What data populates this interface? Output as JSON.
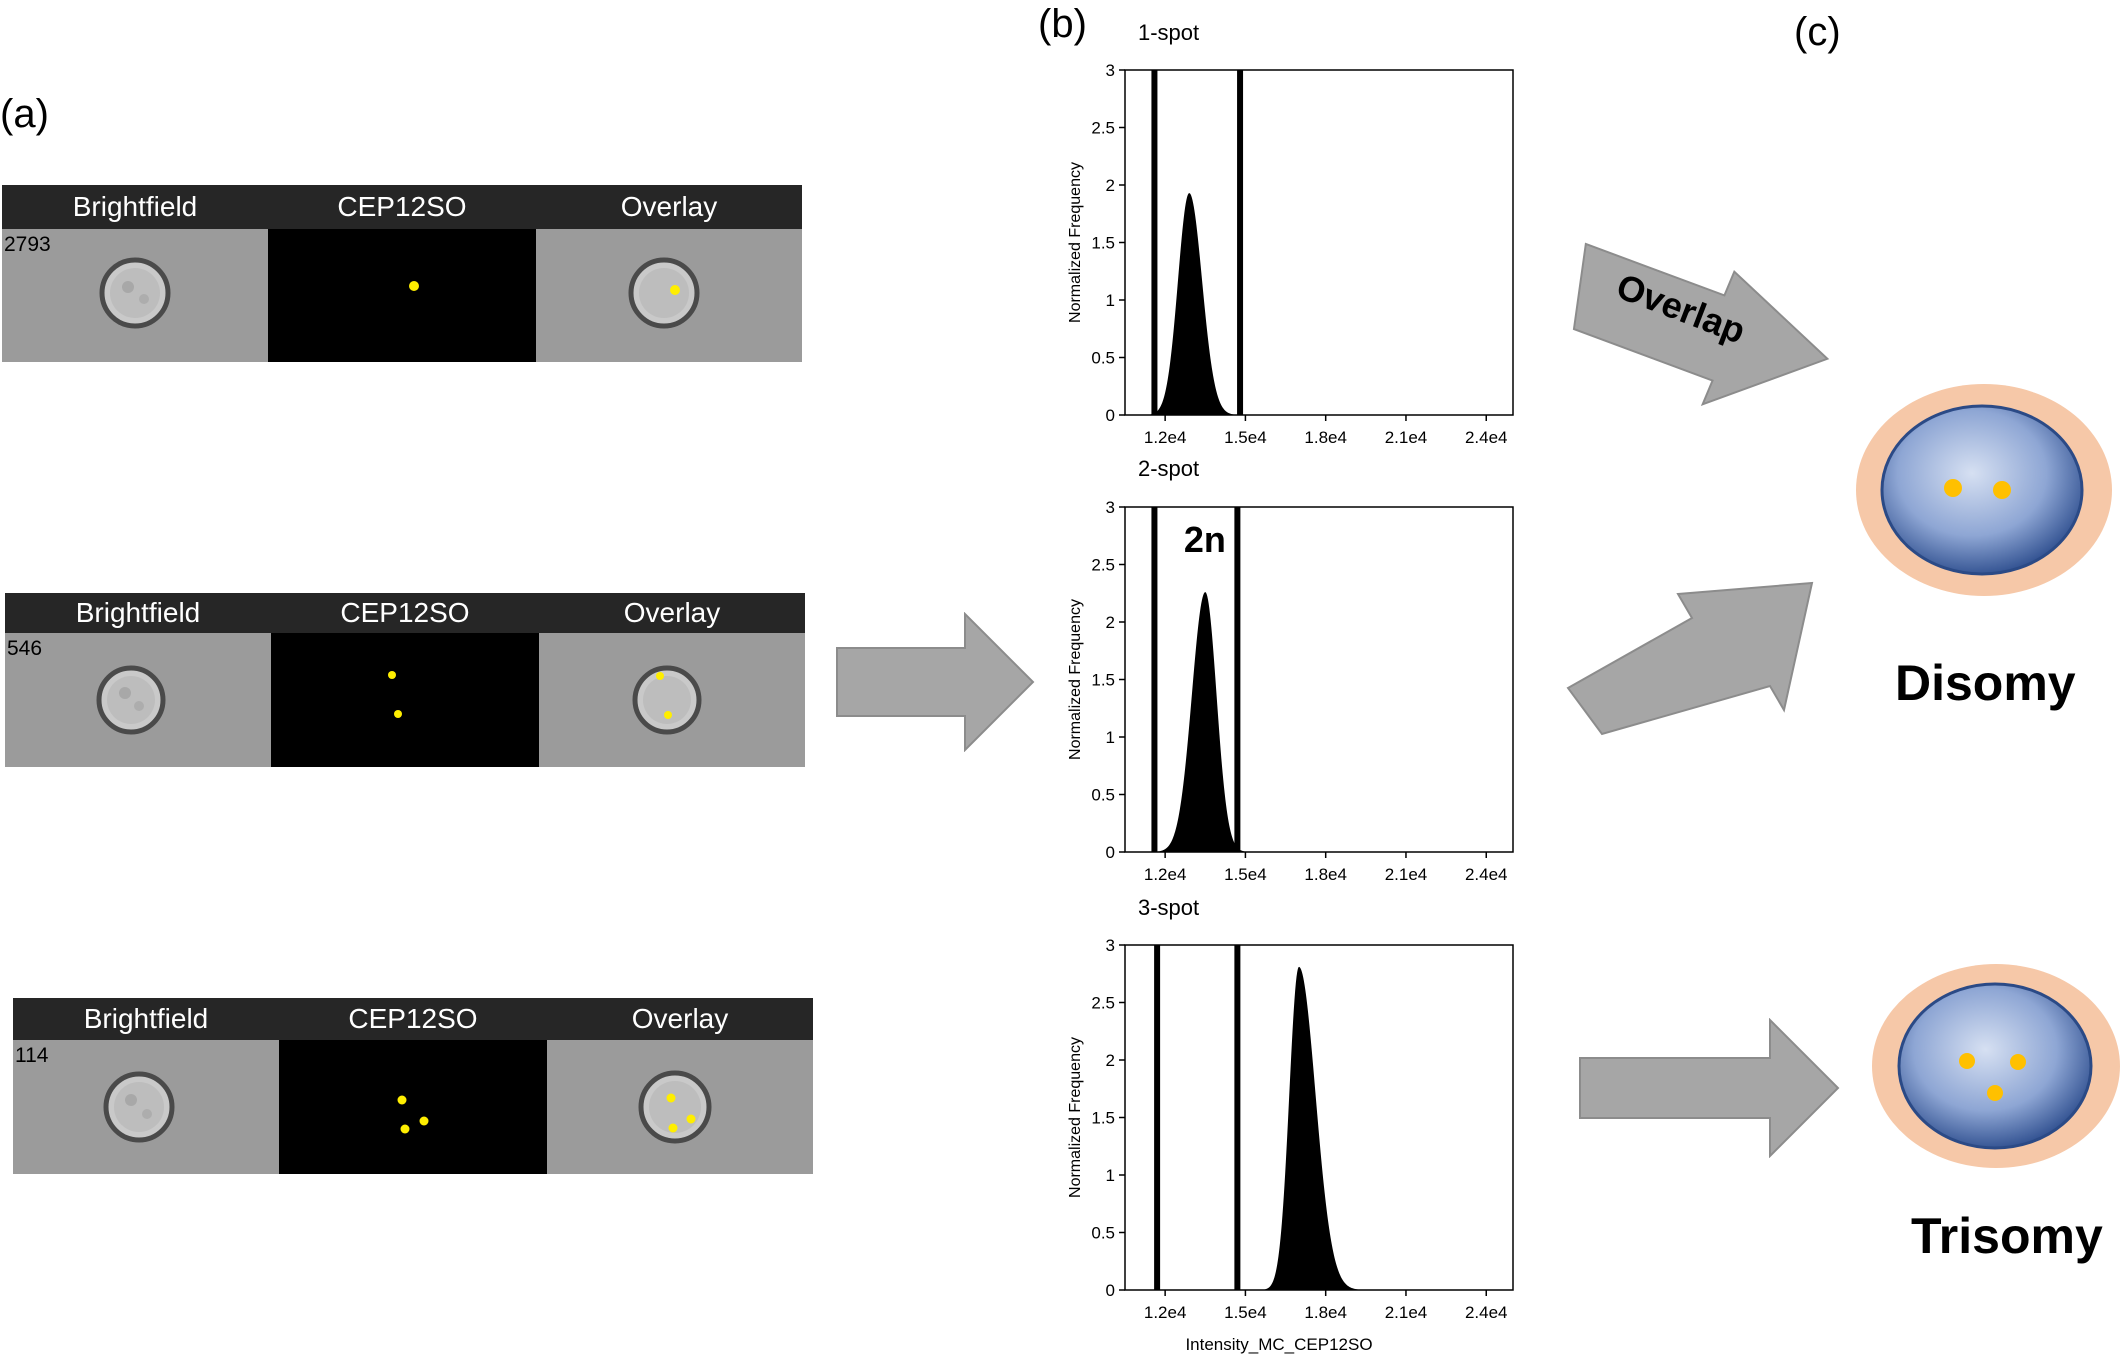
{
  "panel_labels": {
    "a": "(a)",
    "b": "(b)",
    "c": "(c)"
  },
  "image_strips": [
    {
      "headers": [
        "Brightfield",
        "CEP12SO",
        "Overlay"
      ],
      "object_id": "2793",
      "spots": 1
    },
    {
      "headers": [
        "Brightfield",
        "CEP12SO",
        "Overlay"
      ],
      "object_id": "546",
      "spots": 2
    },
    {
      "headers": [
        "Brightfield",
        "CEP12SO",
        "Overlay"
      ],
      "object_id": "114",
      "spots": 3
    }
  ],
  "chart_data": [
    {
      "type": "area",
      "title": "1-spot",
      "ylabel": "Normalized Frequency",
      "xlabel": "",
      "x_ticks": [
        "1.2e4",
        "1.5e4",
        "1.8e4",
        "2.1e4",
        "2.4e4"
      ],
      "y_ticks": [
        "0",
        "0.5",
        "1",
        "1.5",
        "2",
        "2.5",
        "3"
      ],
      "xlim": [
        10500,
        25000
      ],
      "ylim": [
        0,
        3
      ],
      "gate": [
        11600,
        14800
      ],
      "peak": {
        "x": 12900,
        "y": 1.93
      },
      "annotation": ""
    },
    {
      "type": "area",
      "title": "2-spot",
      "ylabel": "Normalized Frequency",
      "xlabel": "",
      "x_ticks": [
        "1.2e4",
        "1.5e4",
        "1.8e4",
        "2.1e4",
        "2.4e4"
      ],
      "y_ticks": [
        "0",
        "0.5",
        "1",
        "1.5",
        "2",
        "2.5",
        "3"
      ],
      "xlim": [
        10500,
        25000
      ],
      "ylim": [
        0,
        3
      ],
      "gate": [
        11600,
        14700
      ],
      "peak": {
        "x": 13500,
        "y": 2.26
      },
      "annotation": "2n"
    },
    {
      "type": "area",
      "title": "3-spot",
      "ylabel": "Normalized Frequency",
      "xlabel": "Intensity_MC_CEP12SO",
      "x_ticks": [
        "1.2e4",
        "1.5e4",
        "1.8e4",
        "2.1e4",
        "2.4e4"
      ],
      "y_ticks": [
        "0",
        "0.5",
        "1",
        "1.5",
        "2",
        "2.5",
        "3"
      ],
      "xlim": [
        10500,
        25000
      ],
      "ylim": [
        0,
        3
      ],
      "gate": [
        11700,
        14700
      ],
      "peak": {
        "x": 17000,
        "y": 2.81
      },
      "annotation": ""
    }
  ],
  "arrows": {
    "overlap_label": "Overlap"
  },
  "outcomes": [
    {
      "label": "Disomy",
      "spots": 2
    },
    {
      "label": "Trisomy",
      "spots": 3
    }
  ],
  "colors": {
    "header_bg": "#262626",
    "brightfield_bg": "#9b9b9b",
    "arrow_gray": "#a6a6a6",
    "cytoplasm": "#f6c8a8",
    "nucleus_dark": "#2f4f8f",
    "nucleus_light": "#c9d6ee",
    "spot_yellow": "#ffc000",
    "fluor_spot": "#ffee00"
  }
}
